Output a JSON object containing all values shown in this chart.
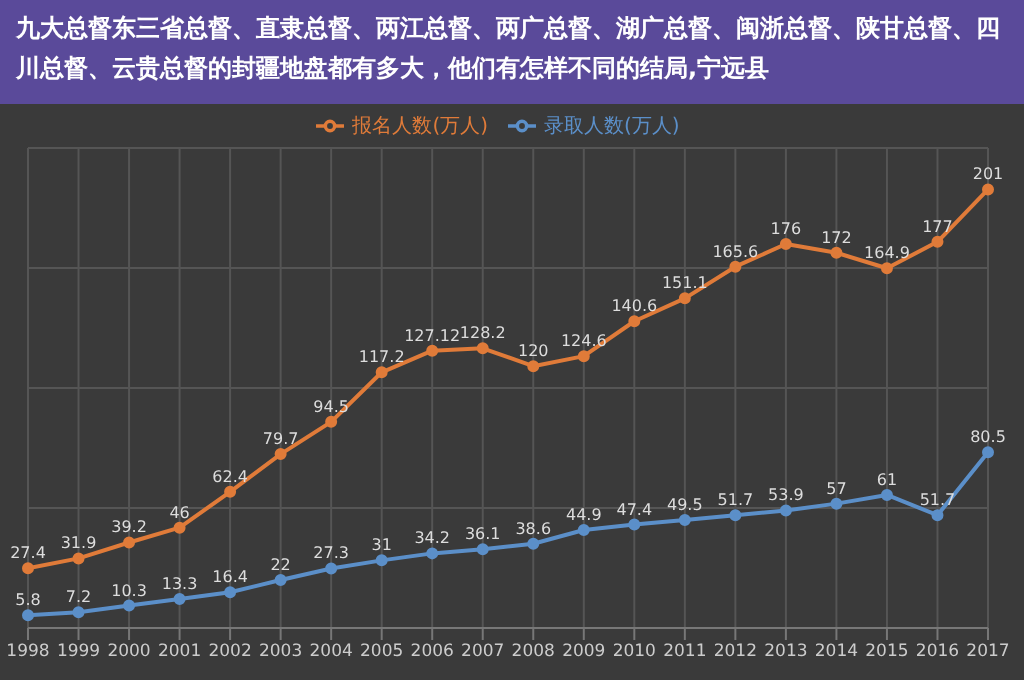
{
  "chart_data": {
    "type": "line",
    "title": "九大总督东三省总督、直隶总督、两江总督、两广总督、湖广总督、闽浙总督、陕甘总督、四川总督、云贵总督的封疆地盘都有多大，他们有怎样不同的结局,宁远县",
    "categories": [
      "1998",
      "1999",
      "2000",
      "2001",
      "2002",
      "2003",
      "2004",
      "2005",
      "2006",
      "2007",
      "2008",
      "2009",
      "2010",
      "2011",
      "2012",
      "2013",
      "2014",
      "2015",
      "2016",
      "2017"
    ],
    "series": [
      {
        "name": "报名人数(万人)",
        "color": "#e07b39",
        "values": [
          27.4,
          31.9,
          39.2,
          46,
          62.4,
          79.7,
          94.5,
          117.2,
          127.12,
          128.2,
          120,
          124.6,
          140.6,
          151.1,
          165.6,
          176,
          172,
          164.9,
          177,
          201
        ]
      },
      {
        "name": "录取人数(万人)",
        "color": "#5b8fc9",
        "values": [
          5.8,
          7.2,
          10.3,
          13.3,
          16.4,
          22,
          27.3,
          31,
          34.2,
          36.1,
          38.6,
          44.9,
          47.4,
          49.5,
          51.7,
          53.9,
          57,
          61,
          51.7,
          80.5
        ]
      }
    ],
    "data_labels": true,
    "grid": true,
    "legend": "top",
    "marker": "circle",
    "line_style": "solid"
  }
}
